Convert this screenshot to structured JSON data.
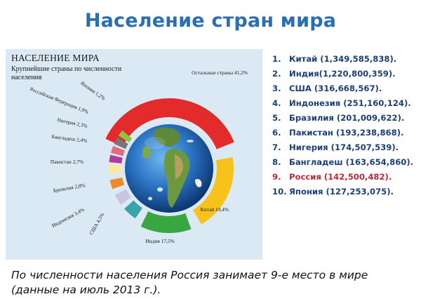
{
  "title": "Население стран мира",
  "infographic": {
    "heading": "НАСЕЛЕНИЕ МИРА",
    "subheading": "Крупнейшие страны по численности населения",
    "segments": [
      {
        "label": "Остальные страны 41,2%",
        "percent": 41.2,
        "color": "#e32b2b"
      },
      {
        "label": "Китай 19,4%",
        "percent": 19.4,
        "color": "#f7c21a"
      },
      {
        "label": "Индия 17,5%",
        "percent": 17.5,
        "color": "#3aa641"
      },
      {
        "label": "США 4,5%",
        "percent": 4.5,
        "color": "#3aa3a8"
      },
      {
        "label": "Индонезия 3,4%",
        "percent": 3.4,
        "color": "#c9c4e2"
      },
      {
        "label": "Бразилия 2,8%",
        "percent": 2.8,
        "color": "#ef8a2c"
      },
      {
        "label": "Пакистан 2,7%",
        "percent": 2.7,
        "color": "#fce9a0"
      },
      {
        "label": "Бангладеш 2,4%",
        "percent": 2.4,
        "color": "#b33a9b"
      },
      {
        "label": "Нигерия 2,3%",
        "percent": 2.3,
        "color": "#e36c79"
      },
      {
        "label": "Российская Федерация 1,9%",
        "percent": 1.9,
        "color": "#777777"
      },
      {
        "label": "Япония 1,2%",
        "percent": 1.2,
        "color": "#8cc63e"
      }
    ]
  },
  "ranking": [
    {
      "num": "1.",
      "text": "Китай (1,349,585,838).",
      "highlight": false
    },
    {
      "num": "2.",
      "text": "Индия(1,220,800,359).",
      "highlight": false
    },
    {
      "num": "3.",
      "text": "США (316,668,567).",
      "highlight": false
    },
    {
      "num": "4.",
      "text": "Индонезия (251,160,124).",
      "highlight": false
    },
    {
      "num": "5.",
      "text": "Бразилия (201,009,622).",
      "highlight": false
    },
    {
      "num": "6.",
      "text": "Пакистан (193,238,868).",
      "highlight": false
    },
    {
      "num": "7.",
      "text": "Нигерия (174,507,539).",
      "highlight": false
    },
    {
      "num": "8.",
      "text": "Бангладеш (163,654,860).",
      "highlight": false
    },
    {
      "num": "9.",
      "text": "Россия (142,500,482).",
      "highlight": true
    },
    {
      "num": "10.",
      "text": "Япония (127,253,075).",
      "highlight": false
    }
  ],
  "footer": "По численности населения Россия занимает 9-е место в мире (данные на июль 2013 г.)."
}
